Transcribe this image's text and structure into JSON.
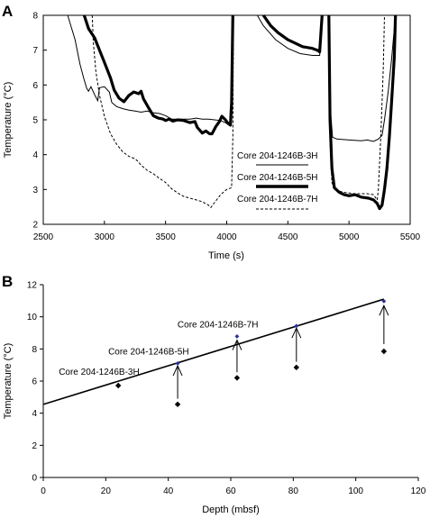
{
  "chart_data": [
    {
      "type": "line",
      "panel_label": "A",
      "xlabel": "Time (s)",
      "ylabel": "Temperature (°C)",
      "xlim": [
        2500,
        5500
      ],
      "ylim": [
        2,
        8
      ],
      "xticks": [
        2500,
        3000,
        3500,
        4000,
        4500,
        5000,
        5500
      ],
      "yticks": [
        2,
        3,
        4,
        5,
        6,
        7,
        8
      ],
      "grid": false,
      "legend_position": "center",
      "series": [
        {
          "name": "Core 204-1246B-3H",
          "style": "thin",
          "segments": [
            [
              [
                2700,
                8
              ],
              [
                2760,
                7.3
              ],
              [
                2800,
                6.6
              ],
              [
                2830,
                6.2
              ],
              [
                2855,
                5.9
              ],
              [
                2870,
                5.82
              ],
              [
                2890,
                5.95
              ],
              [
                2920,
                5.72
              ],
              [
                2945,
                5.55
              ],
              [
                2960,
                5.92
              ],
              [
                3000,
                5.95
              ],
              [
                3040,
                5.8
              ],
              [
                3060,
                5.5
              ],
              [
                3100,
                5.38
              ],
              [
                3150,
                5.32
              ],
              [
                3200,
                5.28
              ],
              [
                3250,
                5.25
              ],
              [
                3300,
                5.22
              ],
              [
                3350,
                5.25
              ],
              [
                3400,
                5.2
              ],
              [
                3450,
                5.18
              ],
              [
                3500,
                5.12
              ],
              [
                3550,
                5.02
              ],
              [
                3600,
                5.02
              ],
              [
                3650,
                5.02
              ],
              [
                3700,
                5.02
              ],
              [
                3750,
                5.05
              ],
              [
                3800,
                5.02
              ],
              [
                3850,
                5.02
              ],
              [
                3900,
                5
              ],
              [
                3950,
                4.98
              ],
              [
                4000,
                4.9
              ],
              [
                4030,
                4.82
              ],
              [
                4040,
                6.2
              ],
              [
                4045,
                8
              ]
            ],
            [
              [
                4250,
                8
              ],
              [
                4300,
                7.7
              ],
              [
                4400,
                7.3
              ],
              [
                4500,
                7.05
              ],
              [
                4600,
                6.9
              ],
              [
                4700,
                6.85
              ],
              [
                4760,
                6.85
              ],
              [
                4780,
                8
              ]
            ],
            [
              [
                4830,
                7.6
              ],
              [
                4840,
                6.2
              ],
              [
                4850,
                5.2
              ],
              [
                4865,
                4.5
              ],
              [
                4900,
                4.45
              ],
              [
                5000,
                4.42
              ],
              [
                5100,
                4.4
              ],
              [
                5150,
                4.42
              ],
              [
                5200,
                4.38
              ],
              [
                5240,
                4.45
              ],
              [
                5270,
                4.55
              ],
              [
                5290,
                5.0
              ],
              [
                5320,
                5.8
              ],
              [
                5350,
                6.8
              ],
              [
                5380,
                8
              ]
            ]
          ]
        },
        {
          "name": "Core 204-1246B-5H",
          "style": "thick",
          "segments": [
            [
              [
                2835,
                8
              ],
              [
                2870,
                7.62
              ],
              [
                2920,
                7.35
              ],
              [
                2960,
                7.0
              ],
              [
                3000,
                6.65
              ],
              [
                3050,
                6.2
              ],
              [
                3080,
                5.85
              ],
              [
                3120,
                5.62
              ],
              [
                3160,
                5.52
              ],
              [
                3200,
                5.7
              ],
              [
                3240,
                5.8
              ],
              [
                3280,
                5.75
              ],
              [
                3300,
                5.82
              ],
              [
                3320,
                5.6
              ],
              [
                3360,
                5.35
              ],
              [
                3400,
                5.12
              ],
              [
                3440,
                5.05
              ],
              [
                3480,
                5.02
              ],
              [
                3500,
                4.98
              ],
              [
                3530,
                5.02
              ],
              [
                3560,
                4.96
              ],
              [
                3600,
                5.0
              ],
              [
                3650,
                4.98
              ],
              [
                3700,
                4.92
              ],
              [
                3740,
                4.95
              ],
              [
                3760,
                4.78
              ],
              [
                3800,
                4.62
              ],
              [
                3830,
                4.68
              ],
              [
                3860,
                4.6
              ],
              [
                3880,
                4.6
              ],
              [
                3910,
                4.8
              ],
              [
                3940,
                4.95
              ],
              [
                3960,
                5.1
              ],
              [
                3990,
                5.0
              ],
              [
                4010,
                4.9
              ],
              [
                4030,
                4.85
              ],
              [
                4040,
                5.5
              ],
              [
                4050,
                8
              ]
            ],
            [
              [
                4300,
                8
              ],
              [
                4360,
                7.7
              ],
              [
                4420,
                7.5
              ],
              [
                4500,
                7.3
              ],
              [
                4560,
                7.2
              ],
              [
                4620,
                7.1
              ],
              [
                4700,
                7.05
              ],
              [
                4740,
                7.0
              ],
              [
                4760,
                6.95
              ],
              [
                4780,
                8
              ]
            ],
            [
              [
                4835,
                8
              ],
              [
                4845,
                5
              ],
              [
                4860,
                3.6
              ],
              [
                4880,
                3.05
              ],
              [
                4920,
                2.92
              ],
              [
                4960,
                2.85
              ],
              [
                5000,
                2.82
              ],
              [
                5050,
                2.85
              ],
              [
                5100,
                2.78
              ],
              [
                5160,
                2.75
              ],
              [
                5200,
                2.7
              ],
              [
                5230,
                2.6
              ],
              [
                5250,
                2.45
              ],
              [
                5270,
                2.55
              ],
              [
                5290,
                3.0
              ],
              [
                5310,
                3.6
              ],
              [
                5330,
                4.5
              ],
              [
                5350,
                5.6
              ],
              [
                5370,
                6.8
              ],
              [
                5380,
                8
              ]
            ]
          ]
        },
        {
          "name": "Core 204-1246B-7H",
          "style": "dashed",
          "segments": [
            [
              [
                2900,
                8
              ],
              [
                2910,
                7.2
              ],
              [
                2930,
                6.4
              ],
              [
                2960,
                5.7
              ],
              [
                3000,
                5.1
              ],
              [
                3050,
                4.6
              ],
              [
                3100,
                4.3
              ],
              [
                3150,
                4.08
              ],
              [
                3200,
                3.95
              ],
              [
                3250,
                3.88
              ],
              [
                3270,
                3.82
              ],
              [
                3300,
                3.7
              ],
              [
                3350,
                3.55
              ],
              [
                3400,
                3.45
              ],
              [
                3450,
                3.32
              ],
              [
                3500,
                3.2
              ],
              [
                3550,
                3.02
              ],
              [
                3600,
                2.9
              ],
              [
                3650,
                2.8
              ],
              [
                3700,
                2.75
              ],
              [
                3750,
                2.7
              ],
              [
                3800,
                2.65
              ],
              [
                3850,
                2.55
              ],
              [
                3870,
                2.48
              ],
              [
                3900,
                2.62
              ],
              [
                3950,
                2.85
              ],
              [
                4000,
                3.0
              ],
              [
                4040,
                3.05
              ],
              [
                4050,
                4.5
              ],
              [
                4055,
                8
              ]
            ],
            [
              [
                4835,
                8
              ],
              [
                4840,
                6
              ],
              [
                4850,
                4
              ],
              [
                4860,
                3.2
              ],
              [
                4880,
                3.0
              ],
              [
                4950,
                2.92
              ],
              [
                5050,
                2.88
              ],
              [
                5150,
                2.88
              ],
              [
                5200,
                2.85
              ],
              [
                5230,
                2.7
              ],
              [
                5240,
                3.0
              ],
              [
                5260,
                4.5
              ],
              [
                5280,
                6.5
              ],
              [
                5290,
                8
              ]
            ]
          ]
        }
      ]
    },
    {
      "type": "scatter",
      "panel_label": "B",
      "xlabel": "Depth (mbsf)",
      "ylabel": "Temperature (°C)",
      "xlim": [
        0,
        120
      ],
      "ylim": [
        0,
        12
      ],
      "xticks": [
        0,
        20,
        40,
        60,
        80,
        100,
        120
      ],
      "yticks": [
        0,
        2,
        4,
        6,
        8,
        10,
        12
      ],
      "grid": false,
      "measured": [
        {
          "x": 24,
          "y": 5.72
        },
        {
          "x": 43,
          "y": 4.55
        },
        {
          "x": 62,
          "y": 6.2
        },
        {
          "x": 81,
          "y": 6.85
        },
        {
          "x": 109,
          "y": 7.85
        }
      ],
      "corrected": [
        {
          "x": 43,
          "y": 7.1
        },
        {
          "x": 62,
          "y": 8.78
        },
        {
          "x": 81,
          "y": 9.43
        },
        {
          "x": 109,
          "y": 10.97
        }
      ],
      "arrows": [
        {
          "x": 43,
          "from": 4.9,
          "to": 6.95
        },
        {
          "x": 62,
          "from": 6.55,
          "to": 8.55
        },
        {
          "x": 81,
          "from": 7.2,
          "to": 9.3
        },
        {
          "x": 109,
          "from": 8.3,
          "to": 10.7
        }
      ],
      "fit_line": {
        "x": [
          0,
          109
        ],
        "y": [
          4.55,
          11.1
        ]
      },
      "annotations": [
        {
          "text": "Core 204-1246B-3H",
          "x": 24,
          "y": 5.72
        },
        {
          "text": "Core 204-1246B-5H",
          "x": 43,
          "y": 7.1
        },
        {
          "text": "Core 204-1246B-7H",
          "x": 62,
          "y": 8.78
        }
      ]
    }
  ]
}
